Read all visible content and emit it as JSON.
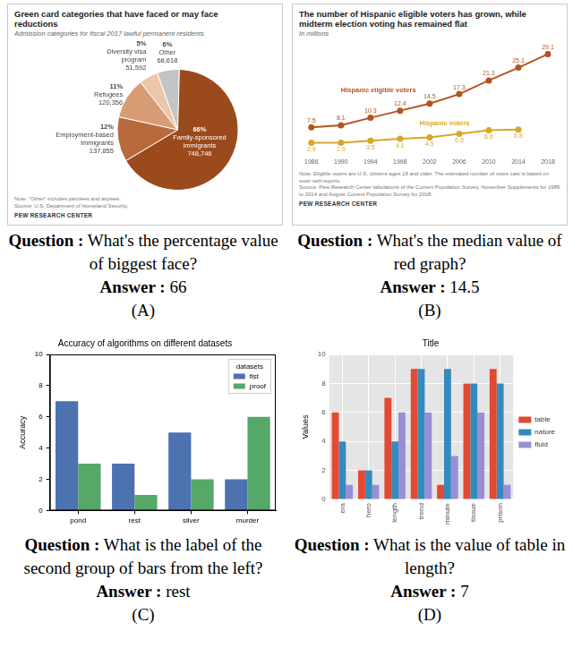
{
  "chart_data": [
    {
      "type": "pie",
      "title": "Green card categories that have faced or may face reductions",
      "subtitle": "Admission categories for fiscal 2017 lawful permanent residents",
      "categories": [
        "Other",
        "Family-sponsored immigrants",
        "Employment-based immigrants",
        "Refugees",
        "Diversity visa program"
      ],
      "values": [
        6,
        66,
        12,
        11,
        5
      ],
      "value_labels": [
        "6%",
        "66%",
        "12%",
        "11%",
        "5%"
      ],
      "counts": [
        68618,
        748746,
        137855,
        120356,
        51592
      ],
      "colors": [
        "#c4c4c4",
        "#9a4a1c",
        "#b8693c",
        "#d89c75",
        "#ebc6ab"
      ],
      "data_labels": true,
      "annotations": [
        "Note: \"Other\" includes parolees and asylees.",
        "Source: U.S. Department of Homeland Security.",
        "PEW RESEARCH CENTER"
      ]
    },
    {
      "type": "line",
      "title": "The number of Hispanic eligible voters has grown, while midterm election voting has remained flat",
      "subtitle": "In millions",
      "categories": [
        "1986",
        "1990",
        "1994",
        "1998",
        "2002",
        "2006",
        "2010",
        "2014",
        "2018"
      ],
      "series": [
        {
          "name": "Hispanic eligible voters",
          "color": "#b4541e",
          "marker": "circle",
          "values": [
            7.5,
            8.1,
            10.3,
            12.4,
            14.5,
            17.3,
            21.3,
            25.1,
            29.1
          ]
        },
        {
          "name": "Hispanic voters",
          "color": "#d6a72a",
          "marker": "circle",
          "values": [
            2.9,
            2.9,
            3.5,
            4.1,
            4.5,
            5.6,
            6.6,
            6.8,
            null
          ]
        }
      ],
      "ylim": [
        0,
        30
      ],
      "grid": false,
      "tick_labels": "x",
      "data_labels": true,
      "annotations": [
        "Note: Eligible voters are U.S. citizens ages 18 and older. The estimated number of votes cast is based on voter self-reports.",
        "Source: Pew Research Center tabulations of the Current Population Survey, November Supplements for 1986 to 2014 and August Current Population Survey for 2018.",
        "PEW RESEARCH CENTER"
      ]
    },
    {
      "type": "bar",
      "title": "Accuracy of algorithms on different datasets",
      "y_label": "Accuracy",
      "categories": [
        "pond",
        "rest",
        "silver",
        "murder"
      ],
      "series": [
        {
          "name": "fist",
          "color": "#4c72b0",
          "values": [
            7,
            3,
            5,
            2
          ]
        },
        {
          "name": "proof",
          "color": "#55a868",
          "values": [
            3,
            1,
            2,
            6
          ]
        }
      ],
      "ylim": [
        0,
        10
      ],
      "yticks": [
        0,
        2,
        4,
        6,
        8,
        10
      ],
      "grid": false,
      "legend": "upper right",
      "legend_title": "datasets"
    },
    {
      "type": "bar",
      "title": "Title",
      "y_label": "Values",
      "categories": [
        "era",
        "hero",
        "length",
        "trend",
        "minute",
        "tissue",
        "prison"
      ],
      "series": [
        {
          "name": "table",
          "color": "#e24a33",
          "values": [
            6,
            2,
            7,
            9,
            1,
            8,
            9
          ]
        },
        {
          "name": "nature",
          "color": "#348abd",
          "values": [
            4,
            2,
            4,
            9,
            9,
            8,
            8
          ]
        },
        {
          "name": "fluid",
          "color": "#988ed5",
          "values": [
            1,
            1,
            6,
            6,
            3,
            6,
            1
          ]
        }
      ],
      "ylim": [
        0,
        10
      ],
      "yticks": [
        0,
        2,
        4,
        6,
        8,
        10
      ],
      "grid": true,
      "legend": "right"
    }
  ],
  "captions": {
    "question_label": "Question :",
    "answer_label": "Answer :",
    "items": [
      {
        "question": "What's the percentage value of biggest face?",
        "answer": "66",
        "panel": "(A)"
      },
      {
        "question": "What's the median value of red graph?",
        "answer": "14.5",
        "panel": "(B)"
      },
      {
        "question": "What is the label of the second group of bars from the left?",
        "answer": "rest",
        "panel": "(C)"
      },
      {
        "question": "What is the value of table in length?",
        "answer": "7",
        "panel": "(D)"
      }
    ]
  }
}
